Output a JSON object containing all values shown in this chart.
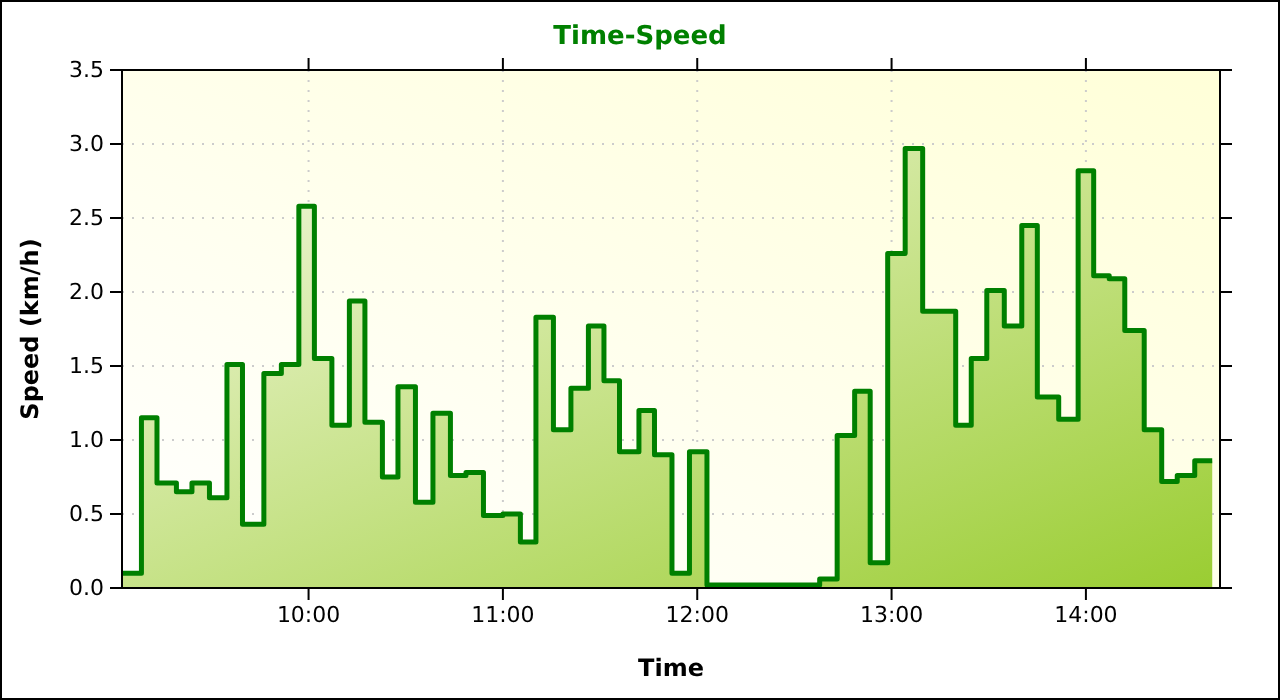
{
  "chart_data": {
    "type": "area",
    "title": "Time-Speed",
    "xlabel": "Time",
    "ylabel": "Speed (km/h)",
    "x": [
      9.04,
      9.14,
      9.14,
      9.22,
      9.22,
      9.32,
      9.32,
      9.4,
      9.4,
      9.49,
      9.49,
      9.58,
      9.58,
      9.66,
      9.66,
      9.77,
      9.77,
      9.86,
      9.86,
      9.95,
      9.95,
      10.03,
      10.03,
      10.12,
      10.12,
      10.21,
      10.21,
      10.29,
      10.29,
      10.38,
      10.38,
      10.46,
      10.46,
      10.55,
      10.55,
      10.64,
      10.64,
      10.73,
      10.73,
      10.81,
      10.81,
      10.9,
      10.9,
      11.0,
      11.0,
      11.09,
      11.09,
      11.17,
      11.17,
      11.26,
      11.26,
      11.35,
      11.35,
      11.44,
      11.44,
      11.52,
      11.52,
      11.6,
      11.6,
      11.7,
      11.7,
      11.78,
      11.78,
      11.87,
      11.87,
      11.96,
      11.96,
      12.05,
      12.05,
      12.63,
      12.63,
      12.72,
      12.72,
      12.81,
      12.81,
      12.89,
      12.89,
      12.98,
      12.98,
      13.07,
      13.07,
      13.16,
      13.16,
      13.33,
      13.33,
      13.41,
      13.41,
      13.49,
      13.49,
      13.58,
      13.58,
      13.67,
      13.67,
      13.75,
      13.75,
      13.86,
      13.86,
      13.96,
      13.96,
      14.04,
      14.04,
      14.12,
      14.12,
      14.2,
      14.2,
      14.3,
      14.3,
      14.39,
      14.39,
      14.47,
      14.47,
      14.56,
      14.56,
      14.65
    ],
    "series": [
      {
        "color": "#008000",
        "values": [
          0.1,
          0.1,
          1.15,
          1.15,
          0.71,
          0.71,
          0.65,
          0.65,
          0.71,
          0.71,
          0.61,
          0.61,
          1.51,
          1.51,
          0.43,
          0.43,
          1.45,
          1.45,
          1.51,
          1.51,
          2.58,
          2.58,
          1.55,
          1.55,
          1.1,
          1.1,
          1.94,
          1.94,
          1.12,
          1.12,
          0.75,
          0.75,
          1.36,
          1.36,
          0.58,
          0.58,
          1.18,
          1.18,
          0.76,
          0.76,
          0.78,
          0.78,
          0.49,
          0.49,
          0.5,
          0.5,
          0.31,
          0.31,
          1.83,
          1.83,
          1.07,
          1.07,
          1.35,
          1.35,
          1.77,
          1.77,
          1.4,
          1.4,
          0.92,
          0.92,
          1.2,
          1.2,
          0.9,
          0.9,
          0.1,
          0.1,
          0.92,
          0.92,
          0.02,
          0.02,
          0.06,
          0.06,
          1.03,
          1.03,
          1.33,
          1.33,
          0.17,
          0.17,
          2.26,
          2.26,
          2.97,
          2.97,
          1.87,
          1.87,
          1.1,
          1.1,
          1.55,
          1.55,
          2.01,
          2.01,
          1.77,
          1.77,
          2.45,
          2.45,
          1.29,
          1.29,
          1.14,
          1.14,
          2.82,
          2.82,
          2.11,
          2.11,
          2.09,
          2.09,
          1.74,
          1.74,
          1.07,
          1.07,
          0.72,
          0.72,
          0.76,
          0.76,
          0.86,
          0.86
        ]
      }
    ],
    "xlim": [
      9.04,
      14.69
    ],
    "xticks": [
      {
        "value": 10,
        "label": "10:00"
      },
      {
        "value": 11,
        "label": "11:00"
      },
      {
        "value": 12,
        "label": "12:00"
      },
      {
        "value": 13,
        "label": "13:00"
      },
      {
        "value": 14,
        "label": "14:00"
      }
    ],
    "ylim": [
      0,
      3.5
    ],
    "yticks": [
      {
        "value": 0,
        "label": "0.0"
      },
      {
        "value": 0.5,
        "label": "0.5"
      },
      {
        "value": 1,
        "label": "1.0"
      },
      {
        "value": 1.5,
        "label": "1.5"
      },
      {
        "value": 2,
        "label": "2.0"
      },
      {
        "value": 2.5,
        "label": "2.5"
      },
      {
        "value": 3,
        "label": "3.0"
      },
      {
        "value": 3.5,
        "label": "3.5"
      }
    ],
    "grid": true
  }
}
